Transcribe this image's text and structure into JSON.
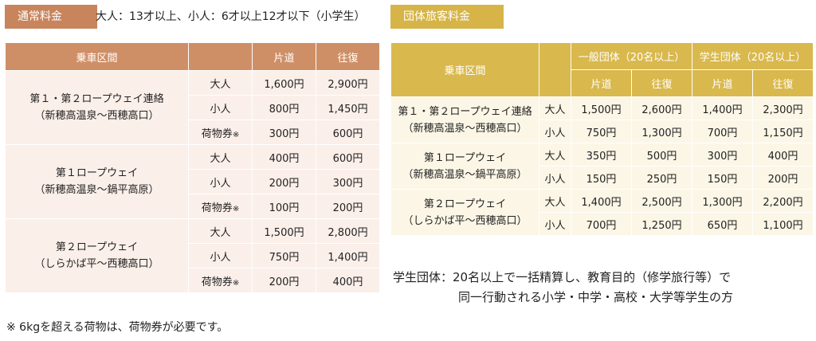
{
  "regular": {
    "tag": "通常料金",
    "age_note": "大人：13才以上、小人：6才以上12才以下（小学生）",
    "headers": {
      "section": "乗車区間",
      "one_way": "片道",
      "round_trip": "往復"
    },
    "sections": [
      {
        "name_line1": "第１・第２ロープウェイ連絡",
        "name_line2": "（新穂高温泉～西穂高口）",
        "rows": [
          {
            "type": "大人",
            "one_way": "1,600円",
            "round_trip": "2,900円"
          },
          {
            "type": "小人",
            "one_way": "800円",
            "round_trip": "1,450円"
          },
          {
            "type": "荷物券",
            "mark": "※",
            "one_way": "300円",
            "round_trip": "600円"
          }
        ]
      },
      {
        "name_line1": "第１ロープウェイ",
        "name_line2": "（新穂高温泉～鍋平高原）",
        "rows": [
          {
            "type": "大人",
            "one_way": "400円",
            "round_trip": "600円"
          },
          {
            "type": "小人",
            "one_way": "200円",
            "round_trip": "300円"
          },
          {
            "type": "荷物券",
            "mark": "※",
            "one_way": "100円",
            "round_trip": "200円"
          }
        ]
      },
      {
        "name_line1": "第２ロープウェイ",
        "name_line2": "（しらかば平～西穂高口）",
        "rows": [
          {
            "type": "大人",
            "one_way": "1,500円",
            "round_trip": "2,800円"
          },
          {
            "type": "小人",
            "one_way": "750円",
            "round_trip": "1,400円"
          },
          {
            "type": "荷物券",
            "mark": "※",
            "one_way": "200円",
            "round_trip": "400円"
          }
        ]
      }
    ],
    "footnote": "※ 6kgを超える荷物は、荷物券が必要です。"
  },
  "group": {
    "tag": "団体旅客料金",
    "headers": {
      "section": "乗車区間",
      "general": "一般団体（20名以上）",
      "student": "学生団体（20名以上）",
      "one_way": "片道",
      "round_trip": "往復"
    },
    "sections": [
      {
        "name_line1": "第１・第２ロープウェイ連絡",
        "name_line2": "（新穂高温泉～西穂高口）",
        "rows": [
          {
            "type": "大人",
            "gen_one": "1,500円",
            "gen_round": "2,600円",
            "stu_one": "1,400円",
            "stu_round": "2,300円"
          },
          {
            "type": "小人",
            "gen_one": "750円",
            "gen_round": "1,300円",
            "stu_one": "700円",
            "stu_round": "1,150円"
          }
        ]
      },
      {
        "name_line1": "第１ロープウェイ",
        "name_line2": "（新穂高温泉～鍋平高原）",
        "rows": [
          {
            "type": "大人",
            "gen_one": "350円",
            "gen_round": "500円",
            "stu_one": "300円",
            "stu_round": "400円"
          },
          {
            "type": "小人",
            "gen_one": "150円",
            "gen_round": "250円",
            "stu_one": "150円",
            "stu_round": "200円"
          }
        ]
      },
      {
        "name_line1": "第２ロープウェイ",
        "name_line2": "（しらかば平～西穂高口）",
        "rows": [
          {
            "type": "大人",
            "gen_one": "1,400円",
            "gen_round": "2,500円",
            "stu_one": "1,300円",
            "stu_round": "2,200円"
          },
          {
            "type": "小人",
            "gen_one": "700円",
            "gen_round": "1,250円",
            "stu_one": "650円",
            "stu_round": "1,100円"
          }
        ]
      }
    ],
    "student_note_line1": "学生団体：20名以上で一括精算し、教育目的（修学旅行等）で",
    "student_note_line2": "同一行動される小学・中学・高校・大学等学生の方"
  }
}
